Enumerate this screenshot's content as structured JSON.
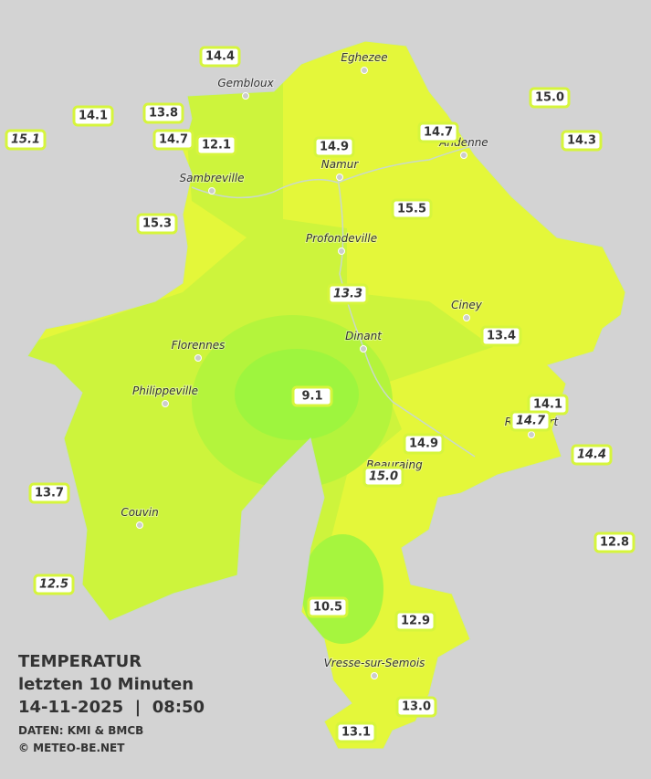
{
  "title": "TEMPERATUR",
  "subtitle": "letzten 10 Minuten",
  "datetime": "14-11-2025  |  08:50",
  "source": "DATEN: KMI & BMCB",
  "copyright": "© METEO-BE.NET",
  "cities": [
    "Eghezee",
    "Gembloux",
    "Andenne",
    "Namur",
    "Sambreville",
    "Profondeville",
    "Ciney",
    "Dinant",
    "Florennes",
    "Philippeville",
    "Rochefort",
    "Beauraing",
    "Couvin",
    "Vresse-sur-Semois"
  ],
  "stations": [
    {
      "value": 14.4
    },
    {
      "value": 14.1
    },
    {
      "value": 13.8
    },
    {
      "value": 15.1,
      "italic": true
    },
    {
      "value": 14.7
    },
    {
      "value": 12.1
    },
    {
      "value": 14.9
    },
    {
      "value": 14.7
    },
    {
      "value": 15,
      "label": "15.0"
    },
    {
      "value": 14.3
    },
    {
      "value": 15.5
    },
    {
      "value": 15.3
    },
    {
      "value": 13.3,
      "italic": true
    },
    {
      "value": 13.4
    },
    {
      "value": 9.1
    },
    {
      "value": 14.1
    },
    {
      "value": 14.7,
      "italic": true
    },
    {
      "value": 14.9
    },
    {
      "value": 15,
      "label": "15.0",
      "italic": true
    },
    {
      "value": 14.4,
      "italic": true
    },
    {
      "value": 13.7
    },
    {
      "value": 12.8
    },
    {
      "value": 12.5,
      "italic": true
    },
    {
      "value": 10.5
    },
    {
      "value": 12.9
    },
    {
      "value": 13,
      "label": "13.0"
    },
    {
      "value": 13.1
    }
  ]
}
